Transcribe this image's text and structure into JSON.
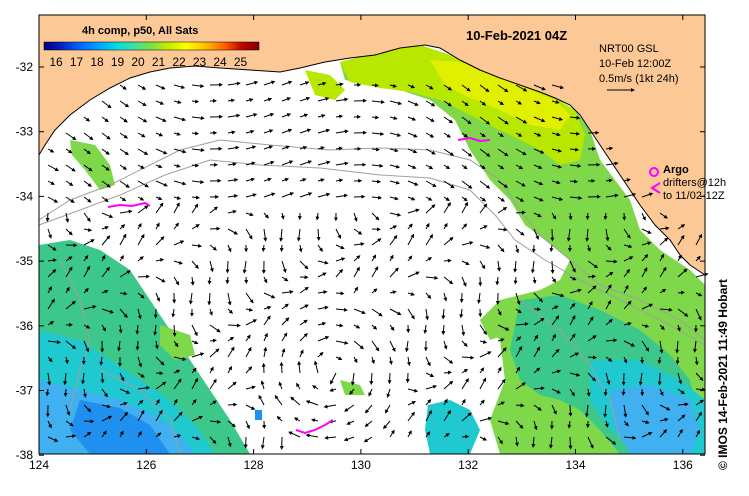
{
  "header": {
    "composite_label": "4h comp, p50, All Sats",
    "date_label": "10-Feb-2021 04Z"
  },
  "colorbar": {
    "ticks": [
      "16",
      "17",
      "18",
      "19",
      "20",
      "21",
      "22",
      "23",
      "24",
      "25"
    ],
    "colors": [
      "#000080",
      "#0020c0",
      "#0060ff",
      "#00a0ff",
      "#00e0e0",
      "#40e0a0",
      "#80e040",
      "#c0f000",
      "#ffff00",
      "#ffc000",
      "#ff6000",
      "#c00000",
      "#800000"
    ]
  },
  "model_box": {
    "line1": "NRT00 GSL",
    "line2": "10-Feb 12:00Z",
    "line3": "0.5m/s (1kt 24h)"
  },
  "legend": {
    "argo_label": "Argo",
    "drifters_line1": "drifters@12h",
    "drifters_line2": "to 11/02-12Z"
  },
  "axes": {
    "lat_ticks": [
      "-32",
      "-33",
      "-34",
      "-35",
      "-36",
      "-37",
      "-38"
    ],
    "lon_ticks": [
      "124",
      "126",
      "128",
      "130",
      "132",
      "134",
      "136"
    ]
  },
  "credit": "©  IMOS 14-Feb-2021 11:49 Hobart",
  "colors": {
    "land": "#fcc896",
    "coast_line": "#000000",
    "bathymetry": "#a0a0a0",
    "argo": "#ff00ff",
    "ocean_bg": "#ffffff"
  }
}
